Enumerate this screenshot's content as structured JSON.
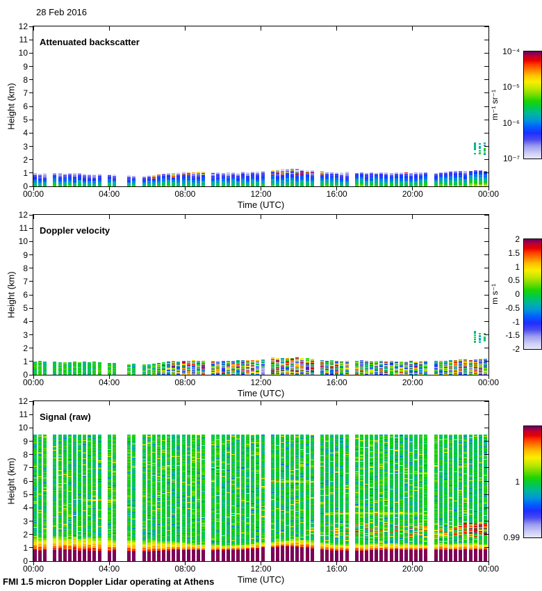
{
  "page": {
    "date_label": "28 Feb 2016",
    "footer": "FMI 1.5 micron Doppler Lidar operating at Athens"
  },
  "chart_data": {
    "type": "heatmap",
    "xlabel": "Time (UTC)",
    "ylabel": "Height (km)",
    "x_ticks": [
      "00:00",
      "04:00",
      "08:00",
      "12:00",
      "16:00",
      "20:00",
      "00:00"
    ],
    "y_ticks": [
      0,
      1,
      2,
      3,
      4,
      5,
      6,
      7,
      8,
      9,
      10,
      11,
      12
    ],
    "ylim_km": [
      0,
      12
    ],
    "xlim_hours": [
      0,
      24
    ],
    "n_profiles": 92,
    "seed": 42,
    "missing_hours": [
      0.9,
      3.8,
      4.7,
      5.6,
      9.3,
      12.3,
      14.9,
      16.9,
      20.9
    ],
    "colormap": [
      [
        0.0,
        "#e8e8fa"
      ],
      [
        0.05,
        "#cfcff6"
      ],
      [
        0.12,
        "#9b9bef"
      ],
      [
        0.18,
        "#4a4aee"
      ],
      [
        0.24,
        "#1f2fff"
      ],
      [
        0.3,
        "#005fff"
      ],
      [
        0.36,
        "#0096d8"
      ],
      [
        0.42,
        "#00b4a0"
      ],
      [
        0.48,
        "#00c850"
      ],
      [
        0.54,
        "#1ed400"
      ],
      [
        0.6,
        "#78dc00"
      ],
      [
        0.66,
        "#c3e800"
      ],
      [
        0.72,
        "#fbee00"
      ],
      [
        0.78,
        "#ffc000"
      ],
      [
        0.83,
        "#ff8000"
      ],
      [
        0.88,
        "#ff3c00"
      ],
      [
        0.92,
        "#e60000"
      ],
      [
        0.96,
        "#bc0030"
      ],
      [
        1.0,
        "#6f005f"
      ]
    ],
    "panels": [
      {
        "title": "Attenuated backscatter",
        "kind": "backscatter",
        "layer_top_km": [
          1.0,
          1.0,
          0.98,
          0.95,
          0.88,
          0.82,
          0.78,
          0.95,
          1.08,
          1.05,
          1.0,
          1.05,
          1.12,
          1.3,
          1.32,
          1.12,
          1.05,
          1.05,
          1.02,
          1.0,
          1.05,
          1.0,
          1.08,
          1.15,
          1.18
        ],
        "cap_speckle_windows_h": [
          [
            6.2,
            9.1
          ],
          [
            12.6,
            15.4
          ]
        ],
        "elevated_specks": {
          "hours": [
            23.3,
            23.9
          ],
          "km": [
            2.4,
            3.3
          ]
        },
        "colorbar": {
          "scale": "log",
          "unit": "m⁻¹ sr⁻¹",
          "ticks": [
            {
              "text": "10⁻⁴",
              "pos": 0
            },
            {
              "text": "10⁻⁵",
              "pos": 0.3333
            },
            {
              "text": "10⁻⁶",
              "pos": 0.6667
            },
            {
              "text": "10⁻⁷",
              "pos": 1
            }
          ]
        }
      },
      {
        "title": "Doppler velocity",
        "kind": "velocity",
        "layer_top_km": [
          1.0,
          1.0,
          0.98,
          0.95,
          0.88,
          0.82,
          0.78,
          0.95,
          1.08,
          1.05,
          1.0,
          1.05,
          1.12,
          1.3,
          1.32,
          1.12,
          1.05,
          1.05,
          1.02,
          1.0,
          1.05,
          1.0,
          1.08,
          1.15,
          1.18
        ],
        "turbulence_amp": [
          0.07,
          0.07,
          0.07,
          0.08,
          0.09,
          0.11,
          0.14,
          0.28,
          0.42,
          0.42,
          0.38,
          0.4,
          0.45,
          0.5,
          0.48,
          0.42,
          0.36,
          0.34,
          0.32,
          0.3,
          0.34,
          0.32,
          0.38,
          0.42,
          0.42
        ],
        "elevated_specks": {
          "hours": [
            23.3,
            23.9
          ],
          "km": [
            2.4,
            3.3
          ]
        },
        "colorbar": {
          "scale": "linear",
          "unit": "m s⁻¹",
          "ticks": [
            {
              "text": "2",
              "pos": 0
            },
            {
              "text": "1.5",
              "pos": 0.125
            },
            {
              "text": "1",
              "pos": 0.25
            },
            {
              "text": "0.5",
              "pos": 0.375
            },
            {
              "text": "0",
              "pos": 0.5
            },
            {
              "text": "-0.5",
              "pos": 0.625
            },
            {
              "text": "-1",
              "pos": 0.75
            },
            {
              "text": "-1.5",
              "pos": 0.875
            },
            {
              "text": "-2",
              "pos": 1
            }
          ]
        }
      },
      {
        "title": "Signal (raw)",
        "kind": "signal",
        "data_top_km": 9.5,
        "saturated_top_km": [
          0.85,
          0.85,
          0.84,
          0.82,
          0.8,
          0.78,
          0.76,
          0.8,
          0.86,
          0.85,
          0.84,
          0.88,
          0.97,
          1.1,
          1.12,
          0.92,
          0.8,
          0.82,
          0.84,
          0.85,
          0.85,
          0.84,
          0.86,
          0.88,
          0.86
        ],
        "low_band_thickness_km": [
          1.0,
          1.0,
          1.0,
          0.95,
          0.9,
          0.85,
          0.8,
          0.7,
          0.55,
          0.45,
          0.4,
          0.4,
          0.45,
          0.5,
          0.6,
          0.6,
          0.5,
          0.5,
          0.5,
          0.5,
          0.5,
          0.5,
          0.5,
          0.5,
          0.5
        ],
        "elevated_band_intensity": [
          0,
          0,
          0,
          0,
          0,
          0,
          0,
          0,
          0,
          0,
          0,
          0,
          0,
          0,
          0,
          0.3,
          0.5,
          0.7,
          0.6,
          0.5,
          0.6,
          0.6,
          0.7,
          0.9,
          0.9
        ],
        "elevated_band_center_km": 2.35,
        "elevated_band_halfwidth_km": 0.55,
        "red_clump": {
          "hours": [
            22.7,
            23.9
          ],
          "center_km": 2.45,
          "halfwidth_km": 0.45
        },
        "streaks": [
          {
            "from": 2.5,
            "to": 5.0,
            "km": 4.6
          },
          {
            "from": 12.3,
            "to": 14.6,
            "km": 6.0
          },
          {
            "from": 15.5,
            "to": 20.5,
            "km": 3.6
          },
          {
            "from": 18.8,
            "to": 21.0,
            "km": 6.6
          }
        ],
        "colorbar": {
          "scale": "linear",
          "ticks": [
            {
              "text": "1",
              "pos": 0.5
            },
            {
              "text": "0.99",
              "pos": 1
            }
          ]
        }
      }
    ]
  }
}
